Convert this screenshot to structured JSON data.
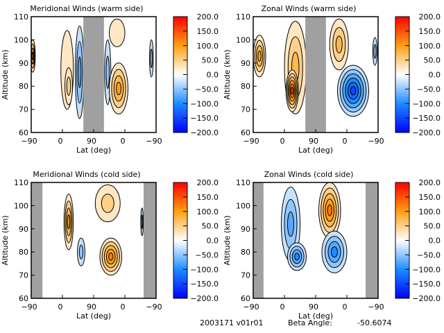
{
  "chart_data": [
    {
      "type": "heatmap",
      "title": "Meridional Winds (warm side)",
      "xlabel": "Lat (deg)",
      "ylabel": "Altitude (km)",
      "xticks": [
        "-90",
        "0",
        "90",
        "0",
        "-90"
      ],
      "yticks": [
        60,
        70,
        80,
        90,
        100,
        110
      ],
      "ylim": [
        60,
        110
      ],
      "colorbar": {
        "ticks": [
          "200.0",
          "150.0",
          "100.0",
          "50.0",
          "0.0",
          "-50.0",
          "-100.0",
          "-150.0",
          "-200.0"
        ],
        "range": [
          -200,
          200
        ]
      },
      "gray_bands": [
        [
          1.67,
          2.33
        ]
      ],
      "blobs": [
        {
          "x": 0.05,
          "alt": 93,
          "rx": 0.08,
          "ra": 7,
          "v": 100
        },
        {
          "x": 1.15,
          "alt": 87,
          "rx": 0.2,
          "ra": 17,
          "v": 25
        },
        {
          "x": 1.2,
          "alt": 80,
          "rx": 0.12,
          "ra": 8,
          "v": 50
        },
        {
          "x": 1.55,
          "alt": 86,
          "rx": 0.14,
          "ra": 20,
          "v": -75
        },
        {
          "x": 2.45,
          "alt": 86,
          "rx": 0.1,
          "ra": 14,
          "v": -50
        },
        {
          "x": 2.75,
          "alt": 103,
          "rx": 0.25,
          "ra": 6,
          "v": 25
        },
        {
          "x": 2.8,
          "alt": 79,
          "rx": 0.3,
          "ra": 11,
          "v": 100
        },
        {
          "x": 3.85,
          "alt": 92,
          "rx": 0.06,
          "ra": 8,
          "v": -50
        }
      ]
    },
    {
      "type": "heatmap",
      "title": "Zonal Winds (warm side)",
      "xlabel": "Lat (deg)",
      "ylabel": "Altitude (km)",
      "xticks": [
        "-90",
        "0",
        "90",
        "0",
        "-90"
      ],
      "yticks": [
        60,
        70,
        80,
        90,
        100,
        110
      ],
      "ylim": [
        60,
        110
      ],
      "colorbar": {
        "ticks": [
          "200.0",
          "150.0",
          "100.0",
          "50.0",
          "0.0",
          "-50.0",
          "-100.0",
          "-150.0",
          "-200.0"
        ],
        "range": [
          -200,
          200
        ]
      },
      "gray_bands": [
        [
          1.67,
          2.33
        ]
      ],
      "blobs": [
        {
          "x": 0.2,
          "alt": 93,
          "rx": 0.2,
          "ra": 9,
          "v": 100
        },
        {
          "x": 1.35,
          "alt": 88,
          "rx": 0.35,
          "ra": 20,
          "v": 75
        },
        {
          "x": 1.25,
          "alt": 78,
          "rx": 0.2,
          "ra": 9,
          "v": 150
        },
        {
          "x": 2.75,
          "alt": 98,
          "rx": 0.3,
          "ra": 11,
          "v": 75
        },
        {
          "x": 3.2,
          "alt": 78,
          "rx": 0.5,
          "ra": 11,
          "v": -150
        },
        {
          "x": 3.9,
          "alt": 95,
          "rx": 0.07,
          "ra": 6,
          "v": -50
        }
      ]
    },
    {
      "type": "heatmap",
      "title": "Meridional Winds (cold side)",
      "xlabel": "Lat (deg)",
      "ylabel": "Altitude (km)",
      "xticks": [
        "-90",
        "0",
        "90",
        "0",
        "-90"
      ],
      "yticks": [
        60,
        70,
        80,
        90,
        100,
        110
      ],
      "ylim": [
        60,
        110
      ],
      "colorbar": {
        "ticks": [
          "200.0",
          "150.0",
          "100.0",
          "50.0",
          "0.0",
          "-50.0",
          "-100.0",
          "-150.0",
          "-200.0"
        ],
        "range": [
          -200,
          200
        ]
      },
      "gray_bands": [
        [
          0,
          0.36
        ],
        [
          3.6,
          4
        ]
      ],
      "blobs": [
        {
          "x": 1.2,
          "alt": 93,
          "rx": 0.15,
          "ra": 12,
          "v": 100
        },
        {
          "x": 1.6,
          "alt": 80,
          "rx": 0.12,
          "ra": 6,
          "v": -50
        },
        {
          "x": 2.45,
          "alt": 101,
          "rx": 0.4,
          "ra": 8,
          "v": 50
        },
        {
          "x": 2.55,
          "alt": 78,
          "rx": 0.35,
          "ra": 8,
          "v": 125
        },
        {
          "x": 3.55,
          "alt": 93,
          "rx": 0.04,
          "ra": 6,
          "v": -50
        }
      ]
    },
    {
      "type": "heatmap",
      "title": "Zonal Winds (cold side)",
      "xlabel": "Lat (deg)",
      "ylabel": "Altitude (km)",
      "xticks": [
        "-90",
        "0",
        "90",
        "0",
        "-90"
      ],
      "yticks": [
        60,
        70,
        80,
        90,
        100,
        110
      ],
      "ylim": [
        60,
        110
      ],
      "colorbar": {
        "ticks": [
          "200.0",
          "150.0",
          "100.0",
          "50.0",
          "0.0",
          "-50.0",
          "-100.0",
          "-150.0",
          "-200.0"
        ],
        "range": [
          -200,
          200
        ]
      },
      "gray_bands": [
        [
          0,
          0.33
        ],
        [
          3.6,
          4
        ]
      ],
      "blobs": [
        {
          "x": 1.2,
          "alt": 92,
          "rx": 0.3,
          "ra": 16,
          "v": -75
        },
        {
          "x": 1.4,
          "alt": 78,
          "rx": 0.3,
          "ra": 6,
          "v": -100
        },
        {
          "x": 2.45,
          "alt": 98,
          "rx": 0.35,
          "ra": 12,
          "v": 125
        },
        {
          "x": 2.6,
          "alt": 80,
          "rx": 0.4,
          "ra": 9,
          "v": -100
        }
      ]
    }
  ],
  "footer": {
    "id": "2003171 v01r01",
    "beta_label": "Beta Angle:",
    "beta_value": "-50.6074"
  }
}
